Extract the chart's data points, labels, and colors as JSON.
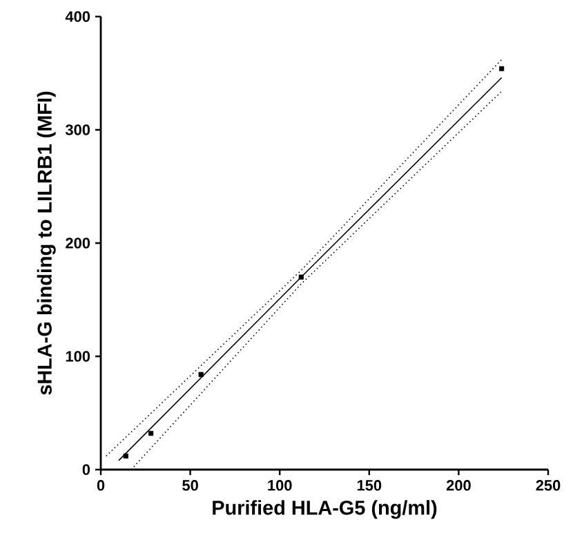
{
  "chart_data": {
    "type": "scatter",
    "xlabel": "Purified HLA-G5 (ng/ml)",
    "ylabel": "sHLA-G binding to LILRB1  (MFI)",
    "xlim": [
      0,
      250
    ],
    "ylim": [
      0,
      400
    ],
    "xticks": [
      0,
      50,
      100,
      150,
      200,
      250
    ],
    "yticks": [
      0,
      100,
      200,
      300,
      400
    ],
    "grid": false,
    "series": [
      {
        "marker": "square",
        "color": "#000000",
        "x": [
          14,
          28,
          56,
          112,
          224
        ],
        "values": [
          12,
          32,
          84,
          170,
          354
        ]
      },
      {
        "type": "line",
        "marker": "none",
        "line_style": "solid",
        "color": "#000000",
        "x": [
          10,
          112,
          224
        ],
        "values": [
          8,
          170,
          346
        ]
      },
      {
        "type": "line",
        "marker": "none",
        "line_style": "dotted",
        "color": "#000000",
        "x": [
          3,
          112,
          224
        ],
        "values": [
          12,
          176,
          362
        ]
      },
      {
        "type": "line",
        "marker": "none",
        "line_style": "dotted",
        "color": "#000000",
        "x": [
          17,
          112,
          224
        ],
        "values": [
          0,
          164,
          334
        ]
      }
    ]
  }
}
